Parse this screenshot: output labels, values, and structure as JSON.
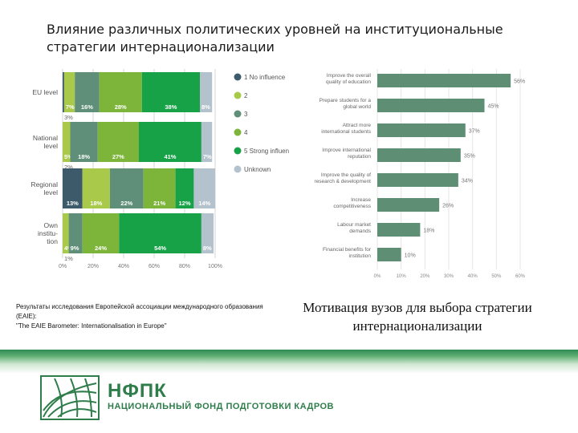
{
  "slide": {
    "title": "Влияние различных политических уровней на институциональные стратегии интернационализации",
    "source_line1": "Результаты исследования Европейской ассоциации международного образования (EAIE):",
    "source_line2": "\"The EAIE Barometer: Internationalisation in Europe\"",
    "caption": "Мотивация вузов для выбора стратегии интернационализации",
    "brand_name": "НФПК",
    "brand_full": "НАЦИОНАЛЬНЫЙ ФОНД ПОДГОТОВКИ КАДРОВ"
  },
  "colors": {
    "influence": [
      "#3d5a6b",
      "#a8c94a",
      "#5f8f78",
      "#7cb53a",
      "#17a248",
      "#b3c2cc"
    ],
    "bar_right": "#5e8f74",
    "brand_green": "#2e7d4a"
  },
  "chart_data": [
    {
      "type": "bar",
      "orientation": "horizontal",
      "stacked": true,
      "categories": [
        "EU level",
        "National level",
        "Regional level",
        "Own institution"
      ],
      "series": [
        {
          "name": "1 No influence",
          "values": [
            1,
            0,
            13,
            0
          ]
        },
        {
          "name": "2",
          "values": [
            7,
            5,
            18,
            4
          ]
        },
        {
          "name": "3",
          "values": [
            16,
            18,
            22,
            9
          ]
        },
        {
          "name": "4",
          "values": [
            28,
            27,
            21,
            24
          ]
        },
        {
          "name": "5 Strong influence",
          "values": [
            38,
            41,
            12,
            54
          ]
        },
        {
          "name": "Unknown",
          "values": [
            8,
            7,
            14,
            8
          ]
        }
      ],
      "segment_labels": [
        [
          "",
          "7%",
          "16%",
          "28%",
          "38%",
          "8%"
        ],
        [
          "",
          "5%",
          "18%",
          "27%",
          "41%",
          "7%"
        ],
        [
          "13%",
          "18%",
          "22%",
          "21%",
          "12%",
          "14%"
        ],
        [
          "",
          "4%",
          "9%",
          "24%",
          "54%",
          "8%"
        ]
      ],
      "side_labels": [
        "3%",
        "2%",
        "",
        "1%"
      ],
      "x_ticks": [
        "0%",
        "20%",
        "40%",
        "60%",
        "80%",
        "100%"
      ],
      "xlim": [
        0,
        100
      ],
      "legend": [
        "1 No influence",
        "2",
        "3",
        "4",
        "5 Strong influen",
        "Unknown"
      ],
      "legend_position": "right"
    },
    {
      "type": "bar",
      "orientation": "horizontal",
      "categories": [
        "Improve the overall quality of education",
        "Prepare students for a global world",
        "Attract more international students",
        "Improve international reputation",
        "Improve the quality of research & development",
        "Increase competitiveness",
        "Labour market demands",
        "Financial benefits for institution"
      ],
      "values": [
        56,
        45,
        37,
        35,
        34,
        26,
        18,
        10
      ],
      "value_labels": [
        "56%",
        "45%",
        "37%",
        "35%",
        "34%",
        "26%",
        "18%",
        "10%"
      ],
      "x_ticks": [
        "0%",
        "10%",
        "20%",
        "30%",
        "40%",
        "50%",
        "60%"
      ],
      "xlim": [
        0,
        60
      ]
    }
  ]
}
